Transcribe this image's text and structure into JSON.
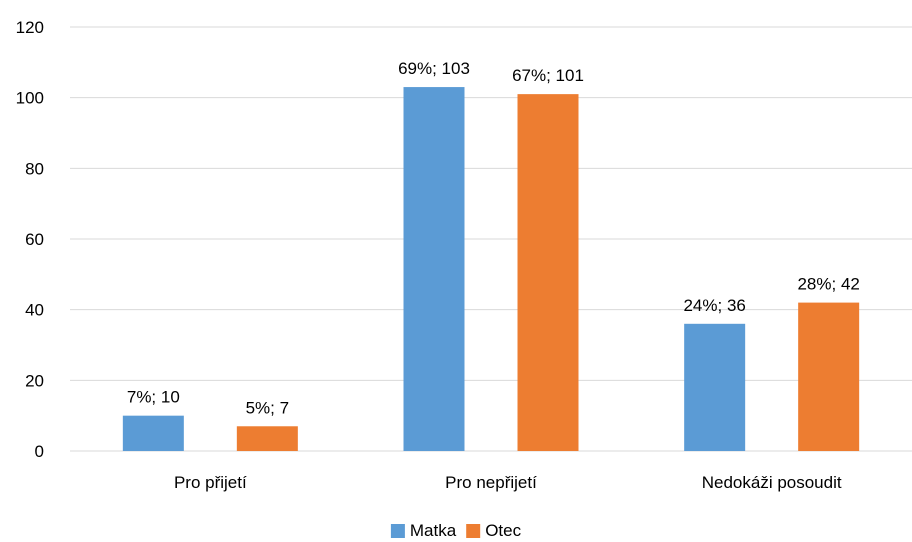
{
  "chart_data": {
    "type": "bar",
    "categories": [
      "Pro přijetí",
      "Pro nepřijetí",
      "Nedokáži posoudit"
    ],
    "series": [
      {
        "name": "Matka",
        "color": "#5b9bd5",
        "values": [
          10,
          103,
          36
        ],
        "labels": [
          "7%; 10",
          "69%; 103",
          "24%; 36"
        ]
      },
      {
        "name": "Otec",
        "color": "#ed7d31",
        "values": [
          7,
          101,
          42
        ],
        "labels": [
          "5%; 7",
          "67%; 101",
          "28%; 42"
        ]
      }
    ],
    "yticks": [
      "0",
      "20",
      "40",
      "60",
      "80",
      "100",
      "120"
    ],
    "ylim": [
      0,
      120
    ],
    "grid": true,
    "legend_position": "bottom"
  }
}
